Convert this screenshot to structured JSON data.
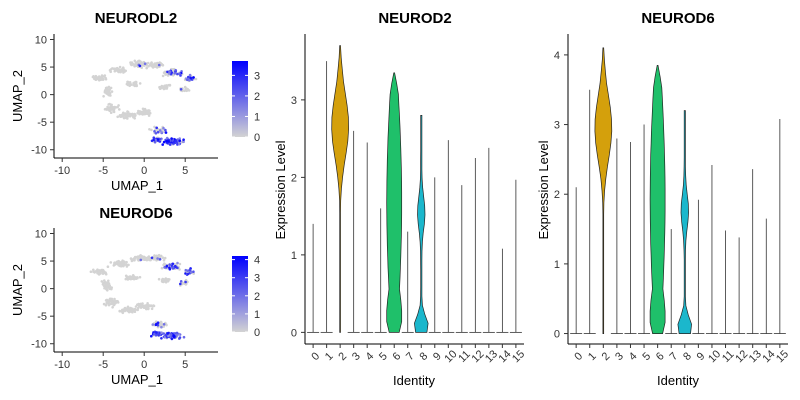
{
  "chart_data": [
    {
      "type": "scatter",
      "title": "NEURODL2",
      "xlabel": "UMAP_1",
      "ylabel": "UMAP_2",
      "xticks": [
        -10,
        -5,
        0,
        5
      ],
      "yticks": [
        10,
        5,
        0,
        -5,
        -10
      ],
      "xlim": [
        -11,
        9
      ],
      "ylim": [
        -11.5,
        11
      ],
      "legend_ticks": [
        3,
        2,
        1,
        0
      ],
      "legend_max": 3.7,
      "legend_colors": {
        "low": "#d3d3d3",
        "high": "#0000ff"
      }
    },
    {
      "type": "scatter",
      "title": "NEUROD6",
      "xlabel": "UMAP_1",
      "ylabel": "UMAP_2",
      "xticks": [
        -10,
        -5,
        0,
        5
      ],
      "yticks": [
        10,
        5,
        0,
        -5,
        -10
      ],
      "xlim": [
        -11,
        9
      ],
      "ylim": [
        -11.5,
        11
      ],
      "legend_ticks": [
        4,
        3,
        2,
        1,
        0
      ],
      "legend_max": 4.2,
      "legend_colors": {
        "low": "#d3d3d3",
        "high": "#0000ff"
      }
    },
    {
      "type": "violin",
      "title": "NEUROD2",
      "xlabel": "Identity",
      "ylabel": "Expression Level",
      "categories": [
        "0",
        "1",
        "2",
        "3",
        "4",
        "5",
        "6",
        "7",
        "8",
        "9",
        "10",
        "11",
        "12",
        "13",
        "14",
        "15"
      ],
      "max_values": [
        1.4,
        3.5,
        3.7,
        2.6,
        2.45,
        1.6,
        3.35,
        1.3,
        2.8,
        2.0,
        2.48,
        1.9,
        2.25,
        2.38,
        1.08,
        1.97
      ],
      "filled": {
        "2": "#d4a00c",
        "6": "#1fc06a",
        "8": "#1bb7cc"
      },
      "yticks": [
        0,
        1,
        2,
        3
      ],
      "ylim": [
        -0.15,
        3.85
      ]
    },
    {
      "type": "violin",
      "title": "NEUROD6",
      "xlabel": "Identity",
      "ylabel": "Expression Level",
      "categories": [
        "0",
        "1",
        "2",
        "3",
        "4",
        "5",
        "6",
        "7",
        "8",
        "9",
        "10",
        "11",
        "12",
        "13",
        "14",
        "15"
      ],
      "max_values": [
        2.1,
        3.5,
        4.1,
        2.8,
        2.75,
        3.0,
        3.85,
        1.5,
        3.2,
        1.92,
        2.42,
        1.48,
        1.38,
        2.36,
        1.65,
        3.08
      ],
      "filled": {
        "2": "#d4a00c",
        "6": "#1fc06a",
        "8": "#1bb7cc"
      },
      "yticks": [
        0,
        1,
        2,
        3,
        4
      ],
      "ylim": [
        -0.15,
        4.3
      ]
    }
  ]
}
